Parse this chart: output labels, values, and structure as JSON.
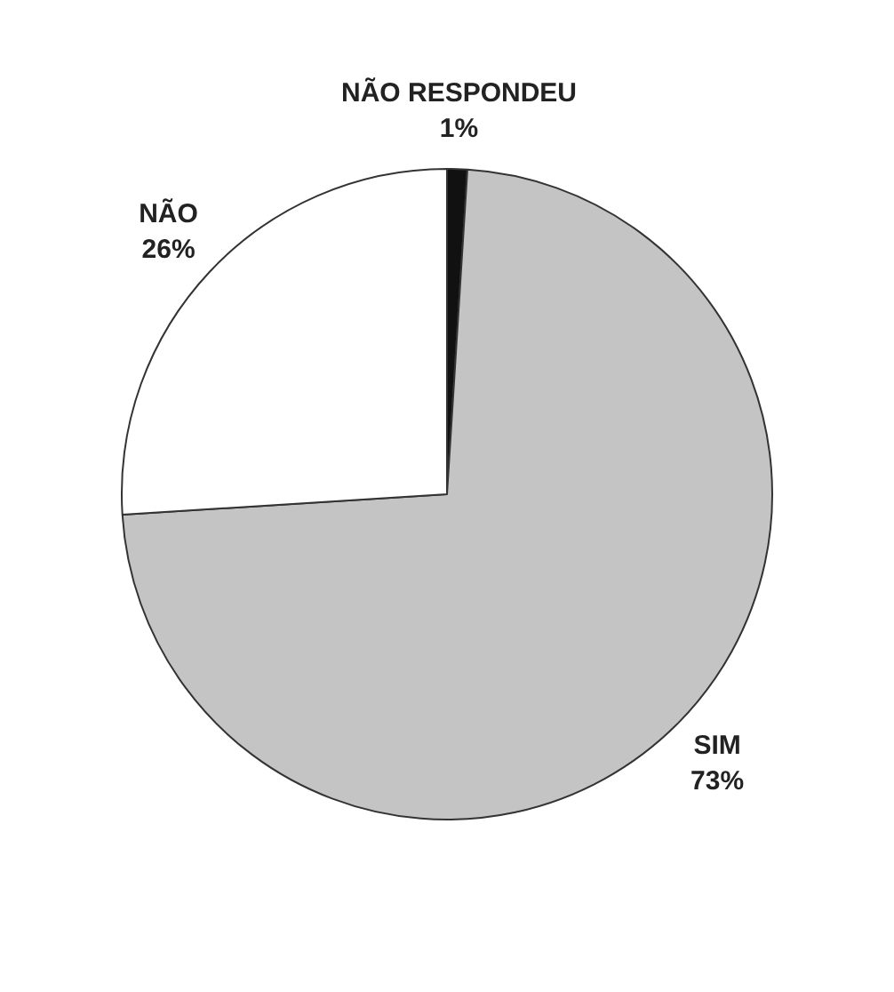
{
  "chart_data": {
    "type": "pie",
    "categories": [
      "NÃO RESPONDEU",
      "SIM",
      "NÃO"
    ],
    "values": [
      1,
      73,
      26
    ],
    "colors": [
      "#111111",
      "#c4c4c4",
      "#ffffff"
    ],
    "value_labels": [
      "1%",
      "73%",
      "26%"
    ],
    "legend": false
  }
}
